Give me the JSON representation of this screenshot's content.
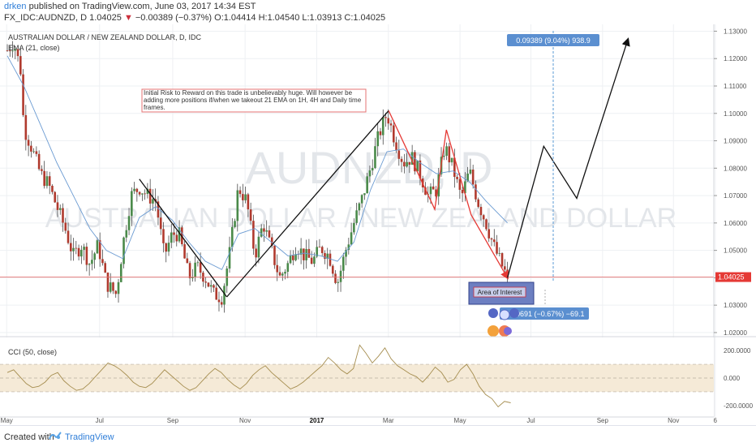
{
  "header": {
    "author": "drken",
    "published_text": " published on TradingView.com, June 03, 2017 14:34 EST",
    "symbol_line_prefix": "FX_IDC:AUDNZD, D  1.04025 ",
    "change_arrow": "▼",
    "change_text": " −0.00389 (−0.37%)",
    "ohlc": " O:1.04414 H:1.04540 L:1.03913 C:1.04025"
  },
  "chart_data": {
    "type": "line",
    "title": "AUSTRALIAN DOLLAR / NEW ZEALAND DOLLAR, D, IDC",
    "indicator_label": "EMA (21, close)",
    "watermark_symbol": "AUDNZD, D",
    "watermark_name": "AUSTRALIAN DOLLAR / NEW ZEALAND DOLLAR",
    "x_tick_labels": [
      "May",
      "Jul",
      "Sep",
      "Nov",
      "2017",
      "Mar",
      "May",
      "Jul",
      "Sep",
      "Nov",
      "6"
    ],
    "y_tick_labels": [
      1.13,
      1.12,
      1.11,
      1.1,
      1.09,
      1.08,
      1.07,
      1.06,
      1.05,
      1.04,
      1.03,
      1.02
    ],
    "ylim": [
      1.0185,
      1.1325
    ],
    "last_price": 1.04025,
    "last_price_label": "1.04025",
    "price_series_points": [
      {
        "t": 0.0,
        "p": 1.123
      },
      {
        "t": 0.4,
        "p": 1.126
      },
      {
        "t": 0.8,
        "p": 1.116
      },
      {
        "t": 1.0,
        "p": 1.095
      },
      {
        "t": 1.5,
        "p": 1.087
      },
      {
        "t": 2.0,
        "p": 1.078
      },
      {
        "t": 2.5,
        "p": 1.074
      },
      {
        "t": 3.0,
        "p": 1.066
      },
      {
        "t": 3.5,
        "p": 1.058
      },
      {
        "t": 4.0,
        "p": 1.048
      },
      {
        "t": 4.5,
        "p": 1.052
      },
      {
        "t": 5.0,
        "p": 1.045
      },
      {
        "t": 5.5,
        "p": 1.052
      },
      {
        "t": 6.0,
        "p": 1.038
      },
      {
        "t": 6.6,
        "p": 1.034
      },
      {
        "t": 7.0,
        "p": 1.052
      },
      {
        "t": 7.5,
        "p": 1.07
      },
      {
        "t": 8.0,
        "p": 1.073
      },
      {
        "t": 8.5,
        "p": 1.07
      },
      {
        "t": 9.0,
        "p": 1.068
      },
      {
        "t": 9.5,
        "p": 1.048
      },
      {
        "t": 10.0,
        "p": 1.056
      },
      {
        "t": 10.4,
        "p": 1.056
      },
      {
        "t": 11.0,
        "p": 1.04
      },
      {
        "t": 11.5,
        "p": 1.044
      },
      {
        "t": 12.0,
        "p": 1.04
      },
      {
        "t": 12.5,
        "p": 1.034
      },
      {
        "t": 13.0,
        "p": 1.033
      },
      {
        "t": 13.5,
        "p": 1.05
      },
      {
        "t": 14.0,
        "p": 1.073
      },
      {
        "t": 14.5,
        "p": 1.068
      },
      {
        "t": 15.0,
        "p": 1.048
      },
      {
        "t": 15.5,
        "p": 1.06
      },
      {
        "t": 16.0,
        "p": 1.05
      },
      {
        "t": 16.5,
        "p": 1.04
      },
      {
        "t": 17.0,
        "p": 1.045
      },
      {
        "t": 17.5,
        "p": 1.052
      },
      {
        "t": 18.0,
        "p": 1.048
      },
      {
        "t": 18.5,
        "p": 1.046
      },
      {
        "t": 19.0,
        "p": 1.051
      },
      {
        "t": 19.5,
        "p": 1.048
      },
      {
        "t": 20.0,
        "p": 1.038
      },
      {
        "t": 20.5,
        "p": 1.05
      },
      {
        "t": 21.0,
        "p": 1.06
      },
      {
        "t": 21.5,
        "p": 1.069
      },
      {
        "t": 22.0,
        "p": 1.08
      },
      {
        "t": 22.5,
        "p": 1.092
      },
      {
        "t": 23.0,
        "p": 1.1
      },
      {
        "t": 23.5,
        "p": 1.09
      },
      {
        "t": 24.0,
        "p": 1.082
      },
      {
        "t": 24.5,
        "p": 1.084
      },
      {
        "t": 25.0,
        "p": 1.078
      },
      {
        "t": 25.5,
        "p": 1.07
      },
      {
        "t": 26.0,
        "p": 1.072
      },
      {
        "t": 26.5,
        "p": 1.088
      },
      {
        "t": 27.0,
        "p": 1.08
      },
      {
        "t": 27.5,
        "p": 1.069
      },
      {
        "t": 28.0,
        "p": 1.079
      },
      {
        "t": 28.5,
        "p": 1.068
      },
      {
        "t": 29.0,
        "p": 1.06
      },
      {
        "t": 29.5,
        "p": 1.051
      },
      {
        "t": 30.0,
        "p": 1.044
      },
      {
        "t": 30.3,
        "p": 1.04
      }
    ],
    "ema_series_points": [
      {
        "t": 0.0,
        "p": 1.121
      },
      {
        "t": 1.0,
        "p": 1.11
      },
      {
        "t": 2.0,
        "p": 1.096
      },
      {
        "t": 3.0,
        "p": 1.082
      },
      {
        "t": 4.0,
        "p": 1.07
      },
      {
        "t": 5.0,
        "p": 1.058
      },
      {
        "t": 6.0,
        "p": 1.05
      },
      {
        "t": 7.0,
        "p": 1.047
      },
      {
        "t": 8.0,
        "p": 1.062
      },
      {
        "t": 9.0,
        "p": 1.066
      },
      {
        "t": 10.0,
        "p": 1.061
      },
      {
        "t": 11.0,
        "p": 1.053
      },
      {
        "t": 12.0,
        "p": 1.046
      },
      {
        "t": 13.0,
        "p": 1.043
      },
      {
        "t": 14.0,
        "p": 1.056
      },
      {
        "t": 15.0,
        "p": 1.058
      },
      {
        "t": 16.0,
        "p": 1.053
      },
      {
        "t": 17.0,
        "p": 1.048
      },
      {
        "t": 18.0,
        "p": 1.049
      },
      {
        "t": 19.0,
        "p": 1.048
      },
      {
        "t": 20.0,
        "p": 1.046
      },
      {
        "t": 21.0,
        "p": 1.053
      },
      {
        "t": 22.0,
        "p": 1.072
      },
      {
        "t": 23.0,
        "p": 1.086
      },
      {
        "t": 24.0,
        "p": 1.087
      },
      {
        "t": 25.0,
        "p": 1.082
      },
      {
        "t": 26.0,
        "p": 1.078
      },
      {
        "t": 27.0,
        "p": 1.079
      },
      {
        "t": 28.0,
        "p": 1.075
      },
      {
        "t": 29.0,
        "p": 1.068
      },
      {
        "t": 30.3,
        "p": 1.06
      }
    ],
    "drawings": {
      "black_trend_points": [
        [
          8.0,
          1.076
        ],
        [
          13.3,
          1.033
        ]
      ],
      "black_up_line": [
        [
          13.3,
          1.033
        ],
        [
          23.1,
          1.101
        ]
      ],
      "red_path": [
        [
          23.1,
          1.101
        ],
        [
          25.9,
          1.065
        ],
        [
          26.6,
          1.094
        ],
        [
          28.1,
          1.063
        ],
        [
          30.3,
          1.04
        ]
      ],
      "projection_path": [
        [
          30.3,
          1.04
        ],
        [
          32.5,
          1.088
        ],
        [
          34.5,
          1.069
        ],
        [
          37.6,
          1.127
        ]
      ],
      "measure_up_label": "0.09389 (9.04%) 938.9",
      "measure_down_label": "0.00691 (−0.67%) −69.1",
      "note_text": "Initial Risk to Reward on this trade is unbelievably huge. Will however be adding more positions if/when we takeout 21 EMA on 1H, 4H and Daily time frames.",
      "area_label": "Area of Interest"
    },
    "cci": {
      "label": "CCI (50, close)",
      "y_tick_labels": [
        "200.0000",
        "0.000",
        "-200.0000"
      ],
      "ylim": [
        -260,
        260
      ],
      "band": [
        -100,
        100
      ],
      "values": [
        40,
        60,
        10,
        -40,
        -70,
        -60,
        -30,
        20,
        40,
        -20,
        -60,
        -90,
        -80,
        -40,
        10,
        60,
        110,
        90,
        60,
        20,
        -30,
        -60,
        -70,
        -40,
        10,
        60,
        20,
        -20,
        -60,
        -90,
        -70,
        -20,
        30,
        70,
        40,
        -10,
        -50,
        -80,
        -40,
        20,
        60,
        90,
        40,
        0,
        -40,
        -80,
        -60,
        -30,
        10,
        50,
        90,
        150,
        110,
        60,
        30,
        70,
        240,
        180,
        110,
        160,
        220,
        140,
        90,
        60,
        30,
        10,
        -30,
        20,
        80,
        40,
        -30,
        -10,
        60,
        100,
        30,
        -60,
        -120,
        -150,
        -210,
        -170,
        -180
      ]
    }
  },
  "footer": {
    "created_with": "Created with",
    "brand": "TradingView"
  }
}
